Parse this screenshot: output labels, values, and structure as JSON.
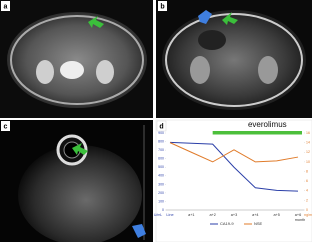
{
  "panels": [
    "a",
    "b",
    "c",
    "d"
  ],
  "chart_data": {
    "type": "line",
    "annotation": "everolimus",
    "x_label": "month",
    "y_label": "U/mL",
    "y2_label": "ng/mL",
    "categories": [
      "Line",
      "a+1",
      "a+2",
      "a+3",
      "a+4",
      "a+5",
      "a+6"
    ],
    "series": [
      {
        "name": "CA19-9",
        "color": "#2b3fa8",
        "values": [
          790,
          780,
          770,
          500,
          260,
          230,
          220
        ]
      },
      {
        "name": "NSE",
        "color": "#e07b2a",
        "axis": "y2",
        "values": [
          14,
          12,
          10,
          12.5,
          10,
          10.2,
          11
        ]
      }
    ],
    "ylim": [
      0,
      900
    ],
    "yticks": [
      0,
      100,
      200,
      300,
      400,
      500,
      600,
      700,
      800,
      900
    ],
    "y2lim": [
      0,
      16
    ],
    "y2ticks": [
      0,
      2,
      4,
      6,
      8,
      10,
      12,
      14,
      16
    ],
    "grid": false
  }
}
